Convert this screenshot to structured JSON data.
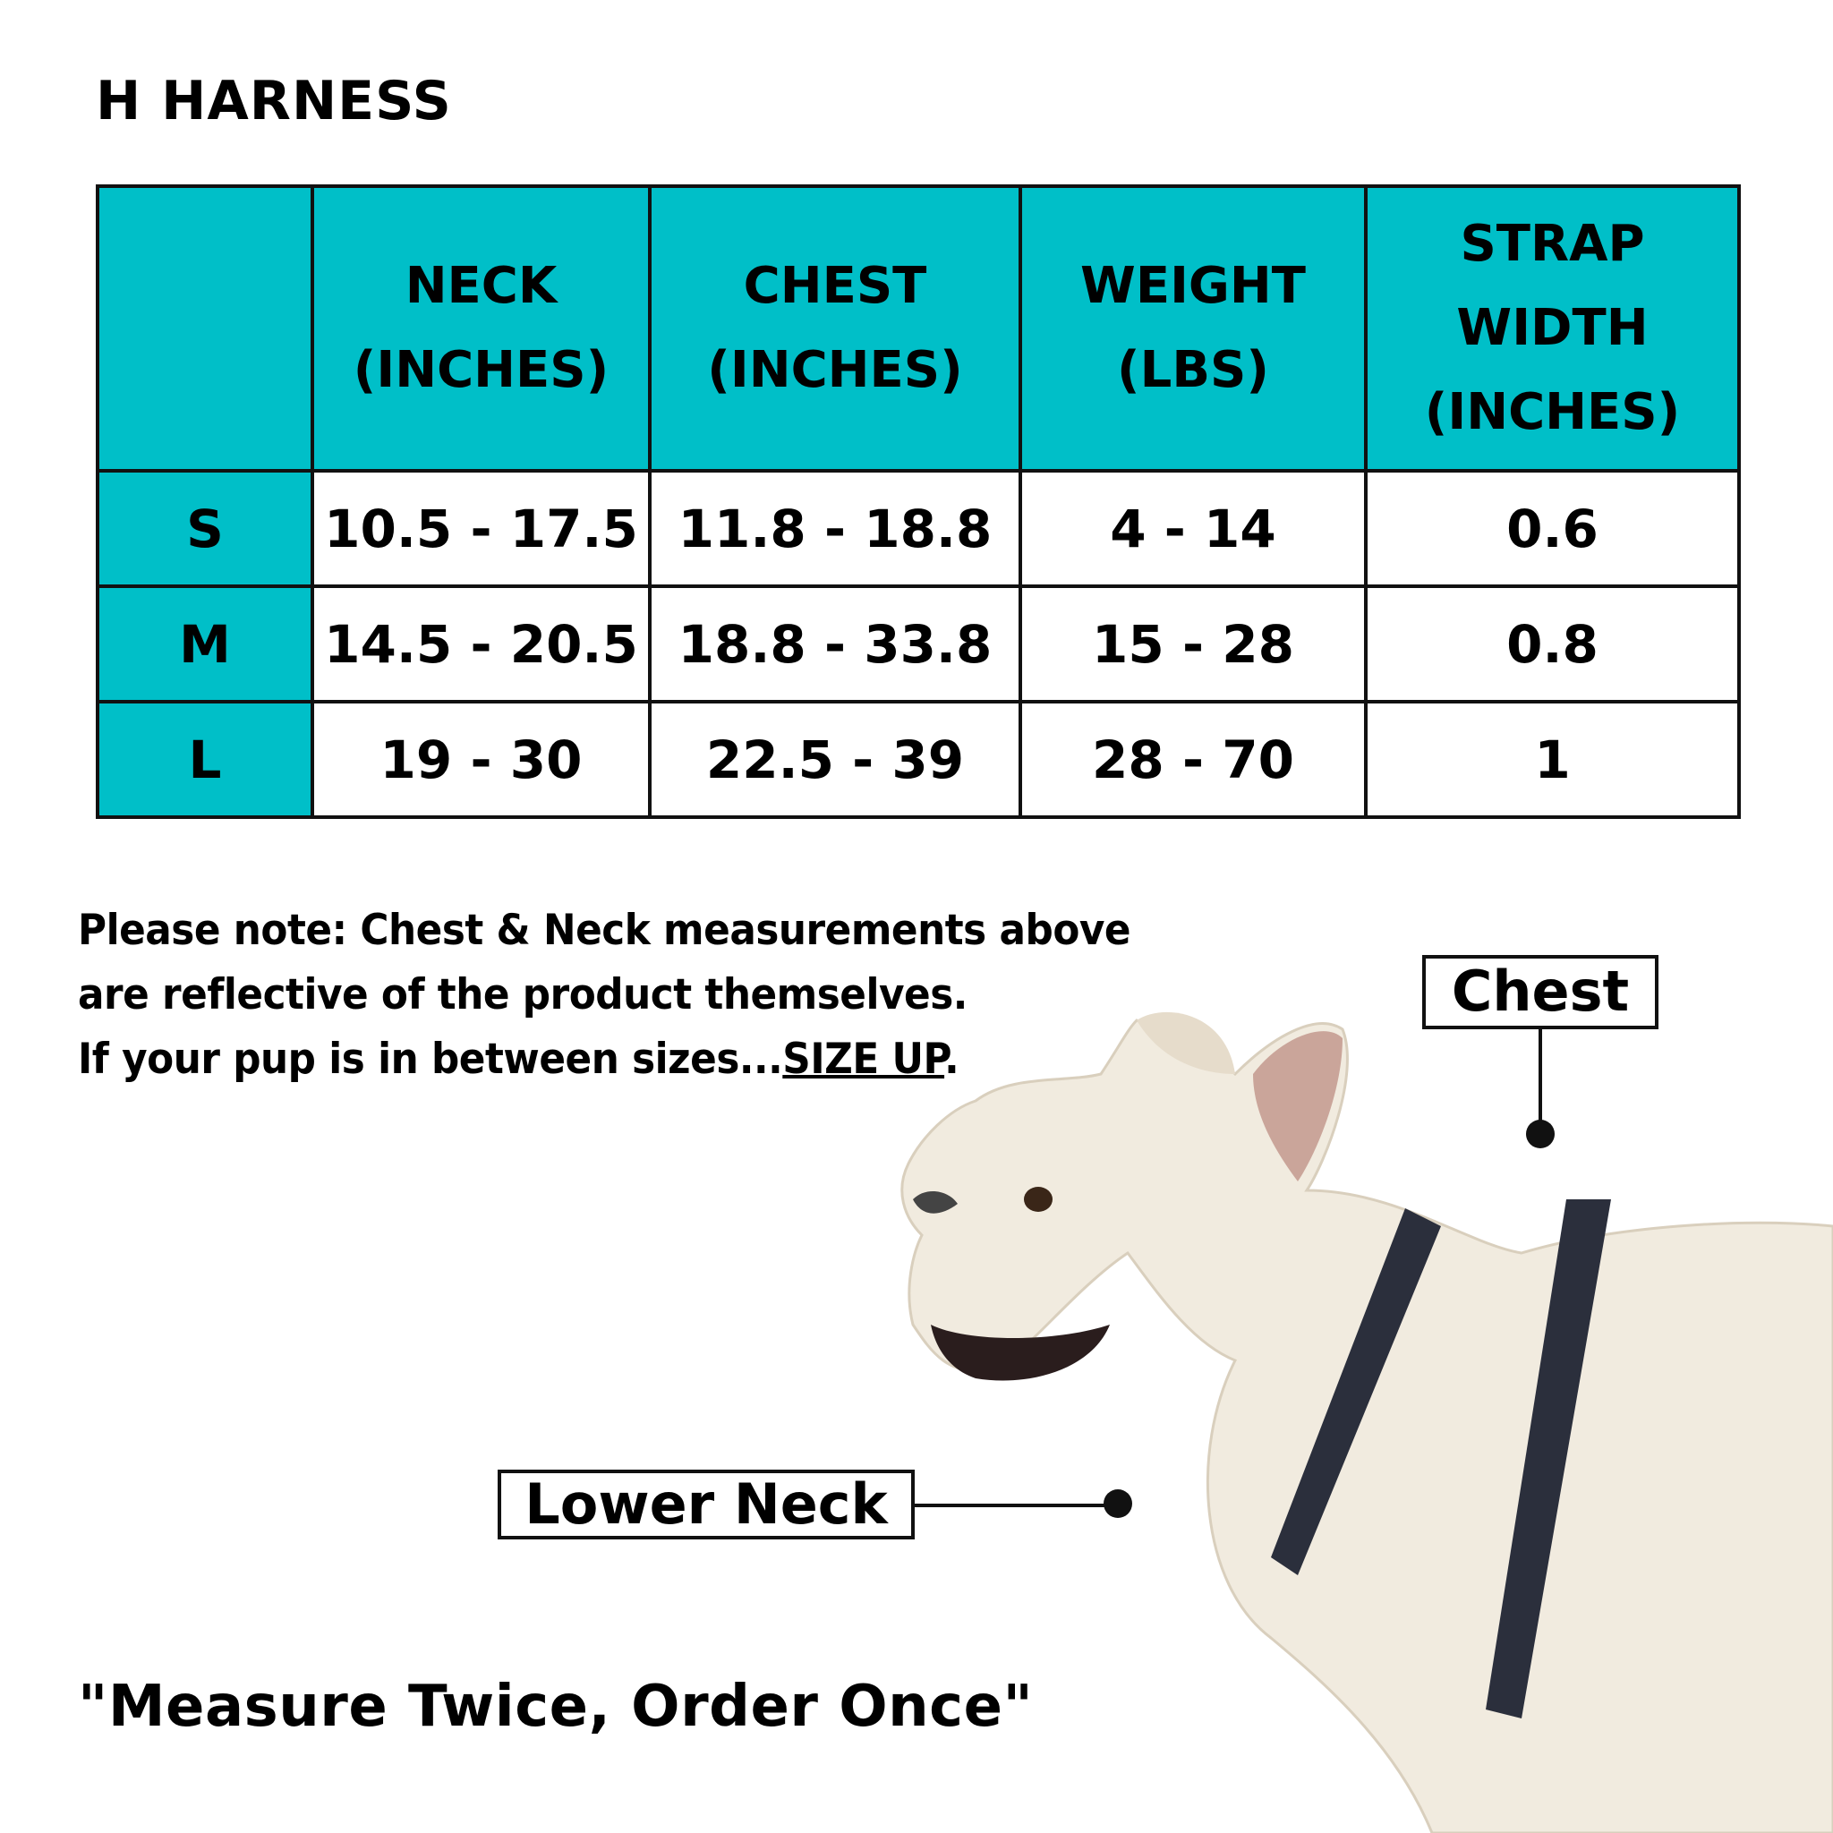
{
  "title": "H HARNESS",
  "colors": {
    "header_teal": "#00BFC8",
    "border": "#111111"
  },
  "table": {
    "headers": [
      "",
      "NECK (INCHES)",
      "CHEST (INCHES)",
      "WEIGHT (LBS)",
      "STRAP WIDTH (INCHES)"
    ],
    "rows": [
      {
        "size": "S",
        "neck": "10.5 - 17.5",
        "chest": "11.8 - 18.8",
        "weight": "4 - 14",
        "strap": "0.6"
      },
      {
        "size": "M",
        "neck": "14.5 - 20.5",
        "chest": "18.8 - 33.8",
        "weight": "15 - 28",
        "strap": "0.8"
      },
      {
        "size": "L",
        "neck": "19 - 30",
        "chest": "22.5 - 39",
        "weight": "28 - 70",
        "strap": "1"
      }
    ]
  },
  "note": {
    "line1": "Please note:  Chest & Neck measurements above",
    "line2": "are reflective of the product themselves.",
    "line3": "If your pup is in between sizes...",
    "emphasis": "SIZE UP",
    "end": "."
  },
  "labels": {
    "chest": "Chest",
    "lower_neck": "Lower Neck"
  },
  "quote": "\"Measure Twice, Order Once\""
}
